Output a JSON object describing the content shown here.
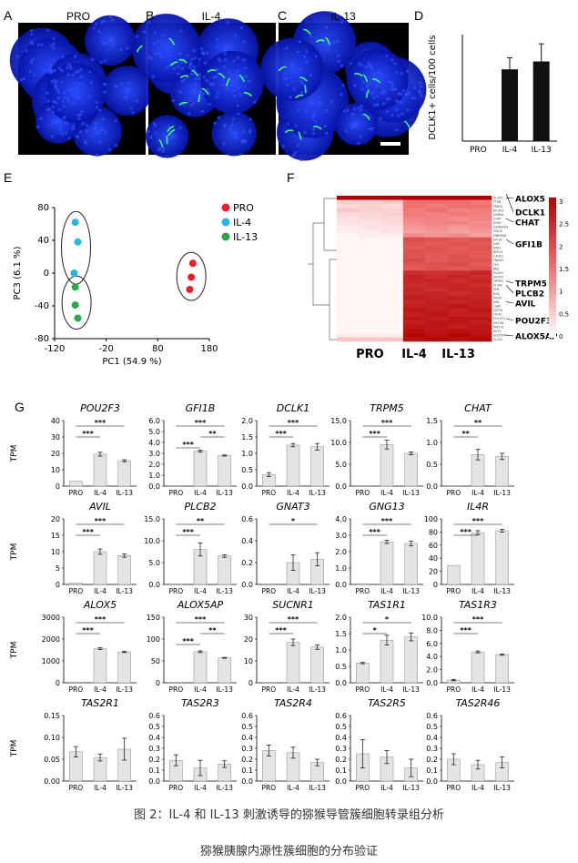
{
  "panels": {
    "A": {
      "letter": "A",
      "title": "PRO"
    },
    "B": {
      "letter": "B",
      "title": "IL-4"
    },
    "C": {
      "letter": "C",
      "title": "IL-13"
    },
    "D": {
      "letter": "D"
    },
    "E": {
      "letter": "E"
    },
    "F": {
      "letter": "F"
    },
    "G": {
      "letter": "G"
    }
  },
  "caption": "图 2：IL-4 和 IL-13 刺激诱导的猕猴导管簇细胞转录组分析",
  "section_title": "猕猴胰腺内源性簇细胞的分布验证",
  "colors": {
    "micro_bg": "#0a1ad8",
    "micro_green": "#3dff7a",
    "pro_red": "#e8202a",
    "il4_blue": "#2ab4e8",
    "il13_green": "#2aa84a",
    "heat_max": "#b00000",
    "heat_min": "#ffffff"
  },
  "chart_data": [
    {
      "id": "D",
      "type": "bar",
      "ylabel": "DCLK1+ cells/100 cells",
      "categories": [
        "PRO",
        "IL-4",
        "IL-13"
      ],
      "values": [
        0,
        1.55,
        1.72
      ],
      "errors": [
        0,
        0.25,
        0.38
      ],
      "ylim": [
        0,
        2.3
      ]
    },
    {
      "id": "E",
      "type": "scatter",
      "xlabel": "PC1 (54.9 %)",
      "ylabel": "PC3 (6.1 %)",
      "xticks": [
        "-120",
        "-20",
        "80",
        "180"
      ],
      "xlim": [
        -120,
        180
      ],
      "yticks": [
        "80",
        "40",
        "0",
        "-40",
        "-80"
      ],
      "ylim": [
        -80,
        80
      ],
      "legend": [
        "PRO",
        "IL-4",
        "IL-13"
      ],
      "series": [
        {
          "name": "PRO",
          "points": [
            [
              148,
              12
            ],
            [
              145,
              -5
            ],
            [
              142,
              -20
            ]
          ]
        },
        {
          "name": "IL-4",
          "points": [
            [
              -80,
              62
            ],
            [
              -75,
              38
            ],
            [
              -82,
              0
            ]
          ]
        },
        {
          "name": "IL-13",
          "points": [
            [
              -80,
              -17
            ],
            [
              -80,
              -39
            ],
            [
              -75,
              -55
            ]
          ]
        }
      ]
    },
    {
      "id": "F",
      "type": "heatmap",
      "columns": [
        "PRO",
        "IL-4",
        "IL-13"
      ],
      "colorbar_ticks": [
        "3",
        "2.5",
        "2",
        "1.5",
        "1",
        "0.5",
        "0"
      ],
      "highlight_genes": [
        "ALOX5",
        "DCLK1",
        "CHAT",
        "GFI1B",
        "TRPM5",
        "PLCB2",
        "AVIL",
        "POU2F3",
        "ALOX5AP"
      ],
      "row_labels": [
        "ALOX5",
        "PTEN",
        "PRKD1",
        "NCOA3",
        "FAHMA",
        "CHAT",
        "SOX9",
        "GADN43D",
        "SSK12",
        "MNRXNB",
        "GFI1B",
        "GNY",
        "NNF1",
        "RPS24",
        "CZH1S",
        "FNKSN",
        "FES",
        "BBS",
        "PCDH1",
        "SHOPV",
        "TRPM5",
        "PLCB2",
        "SPB",
        "RGS",
        "POU5",
        "AVIL",
        "LSAP",
        "SATC8",
        "LTC4S",
        "POU2F3",
        "EDCSN",
        "PAPL41",
        "NCF2",
        "ALOX5AP",
        "PLCG2"
      ],
      "values": [
        [
          3,
          3,
          3,
          3,
          3,
          3,
          3
        ],
        [
          0.5,
          0.5,
          0.6,
          1.5,
          1.5,
          1.5,
          1.4
        ],
        [
          0.4,
          0.5,
          0.4,
          1.5,
          1.4,
          1.5,
          1.5
        ],
        [
          0.6,
          0.5,
          0.5,
          1.4,
          1.5,
          1.3,
          1.4
        ],
        [
          0.4,
          0.4,
          0.5,
          1.4,
          1.3,
          1.4,
          1.3
        ],
        [
          0.3,
          0.4,
          0.4,
          1.3,
          1.3,
          1.2,
          1.3
        ],
        [
          0.3,
          0.3,
          0.4,
          1.2,
          1.3,
          1.3,
          1.2
        ],
        [
          0.2,
          0.3,
          0.3,
          1.1,
          1.2,
          1.1,
          1.2
        ],
        [
          0.2,
          0.2,
          0.3,
          1.0,
          1.1,
          1.0,
          1.1
        ],
        [
          0.1,
          0.2,
          0.2,
          1.2,
          1.1,
          1.2,
          1.0
        ],
        [
          0.1,
          0.1,
          0.1,
          2.0,
          1.9,
          1.8,
          1.9
        ],
        [
          0.1,
          0.1,
          0.1,
          1.9,
          1.8,
          1.9,
          1.8
        ],
        [
          0.1,
          0.1,
          0.1,
          1.8,
          1.9,
          1.8,
          1.9
        ],
        [
          0.1,
          0.1,
          0.1,
          1.9,
          1.9,
          1.8,
          1.8
        ],
        [
          0.1,
          0.1,
          0.1,
          1.9,
          1.8,
          1.9,
          1.8
        ],
        [
          0.1,
          0.1,
          0.1,
          2.0,
          1.8,
          1.9,
          1.9
        ],
        [
          0.1,
          0.1,
          0.1,
          1.9,
          1.9,
          2.0,
          1.8
        ],
        [
          0.1,
          0.1,
          0.1,
          1.8,
          1.9,
          1.8,
          1.9
        ],
        [
          0.1,
          0.1,
          0.1,
          2.4,
          2.3,
          2.4,
          2.5
        ],
        [
          0.1,
          0.1,
          0.1,
          2.5,
          2.4,
          2.5,
          2.4
        ],
        [
          0.1,
          0.1,
          0.1,
          2.5,
          2.5,
          2.4,
          2.5
        ],
        [
          0.1,
          0.1,
          0.1,
          2.4,
          2.5,
          2.5,
          2.4
        ],
        [
          0.1,
          0.1,
          0.1,
          2.5,
          2.4,
          2.5,
          2.5
        ],
        [
          0.1,
          0.1,
          0.1,
          2.5,
          2.5,
          2.4,
          2.5
        ],
        [
          0.1,
          0.1,
          0.1,
          2.6,
          2.5,
          2.6,
          2.5
        ],
        [
          0.1,
          0.1,
          0.1,
          2.5,
          2.6,
          2.5,
          2.6
        ],
        [
          0.1,
          0.1,
          0.1,
          2.6,
          2.6,
          2.7,
          2.6
        ],
        [
          0.1,
          0.1,
          0.1,
          2.7,
          2.6,
          2.6,
          2.7
        ],
        [
          0.1,
          0.1,
          0.1,
          2.6,
          2.7,
          2.6,
          2.6
        ],
        [
          0.1,
          0.1,
          0.1,
          2.7,
          2.6,
          2.7,
          2.7
        ],
        [
          0.1,
          0.1,
          0.1,
          2.6,
          2.7,
          2.7,
          2.6
        ],
        [
          0.1,
          0.1,
          0.1,
          2.7,
          2.7,
          2.6,
          2.7
        ],
        [
          0.1,
          0.1,
          0.1,
          2.8,
          2.7,
          2.8,
          2.7
        ],
        [
          0.2,
          0.2,
          0.2,
          2.9,
          2.8,
          2.9,
          2.8
        ],
        [
          0.6,
          0.6,
          0.6,
          2.8,
          2.9,
          2.8,
          2.9
        ]
      ]
    },
    {
      "id": "G",
      "type": "bar",
      "ylabel": "TPM",
      "categories": [
        "PRO",
        "IL-4",
        "IL-13"
      ],
      "panels": [
        {
          "gene": "POU2F3",
          "yticks": [
            "40",
            "30",
            "20",
            "10",
            "0"
          ],
          "ylim": [
            0,
            40
          ],
          "values": [
            3,
            19.5,
            15.5
          ],
          "errors": [
            0,
            1.2,
            0.6
          ],
          "sig": [
            [
              "***",
              0,
              2
            ],
            [
              "***",
              0,
              1
            ]
          ]
        },
        {
          "gene": "GFI1B",
          "yticks": [
            "6.0",
            "5.0",
            "4.0",
            "3.0",
            "2.0",
            "1.0",
            "0.0"
          ],
          "ylim": [
            0,
            6
          ],
          "values": [
            0,
            3.2,
            2.8
          ],
          "errors": [
            0,
            0.1,
            0.05
          ],
          "sig": [
            [
              "***",
              0,
              2
            ],
            [
              "**",
              1,
              2
            ],
            [
              "***",
              0,
              1
            ]
          ]
        },
        {
          "gene": "DCLK1",
          "yticks": [
            "2.0",
            "1.5",
            "1.0",
            "0.5",
            "0.0"
          ],
          "ylim": [
            0,
            2
          ],
          "values": [
            0.35,
            1.25,
            1.2
          ],
          "errors": [
            0.06,
            0.05,
            0.1
          ],
          "sig": [
            [
              "***",
              0,
              2
            ],
            [
              "***",
              0,
              1
            ]
          ]
        },
        {
          "gene": "TRPM5",
          "yticks": [
            "15.0",
            "10.0",
            "5.0",
            "0.0"
          ],
          "ylim": [
            0,
            15
          ],
          "values": [
            0,
            9.5,
            7.5
          ],
          "errors": [
            0,
            1,
            0.3
          ],
          "sig": [
            [
              "***",
              0,
              2
            ],
            [
              "***",
              0,
              1
            ]
          ]
        },
        {
          "gene": "CHAT",
          "yticks": [
            "1.5",
            "1.0",
            "0.5",
            "0.0"
          ],
          "ylim": [
            0,
            1.5
          ],
          "values": [
            0,
            0.72,
            0.68
          ],
          "errors": [
            0,
            0.12,
            0.07
          ],
          "sig": [
            [
              "**",
              0,
              2
            ],
            [
              "**",
              0,
              1
            ]
          ]
        },
        {
          "gene": "AVIL",
          "yticks": [
            "20",
            "15",
            "10",
            "5",
            "0"
          ],
          "ylim": [
            0,
            20
          ],
          "values": [
            0.5,
            10,
            8.8
          ],
          "errors": [
            0,
            0.8,
            0.5
          ],
          "sig": [
            [
              "***",
              0,
              2
            ],
            [
              "***",
              0,
              1
            ]
          ]
        },
        {
          "gene": "PLCB2",
          "yticks": [
            "15.0",
            "10.0",
            "5.0",
            "0.0"
          ],
          "ylim": [
            0,
            15
          ],
          "values": [
            0,
            8,
            6.5
          ],
          "errors": [
            0,
            1.5,
            0.3
          ],
          "sig": [
            [
              "**",
              0,
              2
            ],
            [
              "***",
              0,
              1
            ]
          ]
        },
        {
          "gene": "GNAT3",
          "yticks": [
            "0.6",
            "0.4",
            "0.2",
            "0.0"
          ],
          "ylim": [
            0,
            0.6
          ],
          "values": [
            0,
            0.2,
            0.23
          ],
          "errors": [
            0,
            0.07,
            0.06
          ],
          "sig": [
            [
              "*",
              0,
              2
            ]
          ]
        },
        {
          "gene": "GNG13",
          "yticks": [
            "4.0",
            "3.0",
            "2.0",
            "1.0",
            "0.0"
          ],
          "ylim": [
            0,
            4
          ],
          "values": [
            0.05,
            2.6,
            2.5
          ],
          "errors": [
            0,
            0.1,
            0.15
          ],
          "sig": [
            [
              "***",
              0,
              2
            ],
            [
              "***",
              0,
              1
            ]
          ]
        },
        {
          "gene": "IL4R",
          "yticks": [
            "100",
            "80",
            "60",
            "40",
            "20",
            "0"
          ],
          "ylim": [
            0,
            100
          ],
          "values": [
            29,
            79,
            82
          ],
          "errors": [
            0,
            3,
            2
          ],
          "sig": [
            [
              "***",
              0,
              2
            ],
            [
              "***",
              0,
              1
            ]
          ]
        },
        {
          "gene": "ALOX5",
          "yticks": [
            "3000",
            "2000",
            "1000",
            "0"
          ],
          "ylim": [
            0,
            3000
          ],
          "values": [
            30,
            1560,
            1410
          ],
          "errors": [
            0,
            40,
            30
          ],
          "sig": [
            [
              "***",
              0,
              2
            ],
            [
              "***",
              0,
              1
            ]
          ]
        },
        {
          "gene": "ALOX5AP",
          "yticks": [
            "150",
            "100",
            "50",
            "0"
          ],
          "ylim": [
            0,
            150
          ],
          "values": [
            0,
            71,
            57
          ],
          "errors": [
            0,
            2,
            1
          ],
          "sig": [
            [
              "***",
              0,
              2
            ],
            [
              "**",
              1,
              2
            ],
            [
              "***",
              0,
              1
            ]
          ]
        },
        {
          "gene": "SUCNR1",
          "yticks": [
            "30",
            "20",
            "10",
            "0"
          ],
          "ylim": [
            0,
            30
          ],
          "values": [
            0,
            18.5,
            16.3
          ],
          "errors": [
            0,
            1.5,
            1
          ],
          "sig": [
            [
              "***",
              0,
              2
            ],
            [
              "***",
              0,
              1
            ]
          ]
        },
        {
          "gene": "TAS1R1",
          "yticks": [
            "2.0",
            "1.5",
            "1.0",
            "0.5",
            "0.0"
          ],
          "ylim": [
            0,
            2
          ],
          "values": [
            0.6,
            1.3,
            1.4
          ],
          "errors": [
            0.02,
            0.15,
            0.12
          ],
          "sig": [
            [
              "*",
              0,
              2
            ],
            [
              "*",
              0,
              1
            ]
          ]
        },
        {
          "gene": "TAS1R3",
          "yticks": [
            "10.0",
            "8.0",
            "6.0",
            "4.0",
            "2.0",
            "0.0"
          ],
          "ylim": [
            0,
            10
          ],
          "values": [
            0.4,
            4.7,
            4.3
          ],
          "errors": [
            0.1,
            0.15,
            0.1
          ],
          "sig": [
            [
              "***",
              0,
              2
            ],
            [
              "***",
              0,
              1
            ]
          ]
        },
        {
          "gene": "TAS2R1",
          "yticks": [
            "0.15",
            "0.10",
            "0.05",
            "0.00"
          ],
          "ylim": [
            0,
            0.15
          ],
          "values": [
            0.067,
            0.054,
            0.073
          ],
          "errors": [
            0.012,
            0.008,
            0.025
          ],
          "sig": []
        },
        {
          "gene": "TAS2R3",
          "yticks": [
            "0.6",
            "0.5",
            "0.4",
            "0.3",
            "0.2",
            "0.1",
            "0.0"
          ],
          "ylim": [
            0,
            0.6
          ],
          "values": [
            0.19,
            0.12,
            0.155
          ],
          "errors": [
            0.05,
            0.07,
            0.03
          ],
          "sig": []
        },
        {
          "gene": "TAS2R4",
          "yticks": [
            "0.6",
            "0.5",
            "0.4",
            "0.3",
            "0.2",
            "0.1",
            "0.0"
          ],
          "ylim": [
            0,
            0.6
          ],
          "values": [
            0.28,
            0.26,
            0.17
          ],
          "errors": [
            0.05,
            0.05,
            0.03
          ],
          "sig": []
        },
        {
          "gene": "TAS2R5",
          "yticks": [
            "0.6",
            "0.5",
            "0.4",
            "0.3",
            "0.2",
            "0.1",
            "0.0"
          ],
          "ylim": [
            0,
            0.6
          ],
          "values": [
            0.25,
            0.22,
            0.12
          ],
          "errors": [
            0.13,
            0.06,
            0.08
          ],
          "sig": []
        },
        {
          "gene": "TAS2R46",
          "yticks": [
            "0.6",
            "0.5",
            "0.4",
            "0.3",
            "0.2",
            "0.1",
            "0.0"
          ],
          "ylim": [
            0,
            0.6
          ],
          "values": [
            0.2,
            0.15,
            0.17
          ],
          "errors": [
            0.05,
            0.04,
            0.05
          ],
          "sig": []
        }
      ]
    }
  ]
}
